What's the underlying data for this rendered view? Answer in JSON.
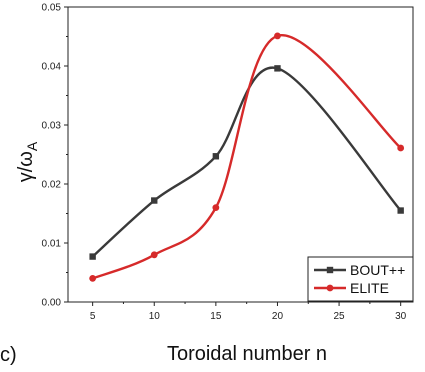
{
  "panel_label": "c)",
  "chart_data": {
    "type": "line",
    "title": "",
    "xlabel": "Toroidal number n",
    "ylabel_main": "γ/ω",
    "ylabel_sub": "A",
    "xlim": [
      3,
      31
    ],
    "ylim": [
      0,
      0.05
    ],
    "xticks": [
      5,
      10,
      15,
      20,
      25,
      30
    ],
    "yticks": [
      0.0,
      0.01,
      0.02,
      0.03,
      0.04,
      0.05
    ],
    "ytick_labels": [
      "0.00",
      "0.01",
      "0.02",
      "0.03",
      "0.04",
      "0.05"
    ],
    "grid": false,
    "legend_position": "bottom-right",
    "series": [
      {
        "name": "BOUT++",
        "color": "#3a3a3a",
        "marker": "square",
        "x": [
          5,
          10,
          15,
          20,
          30
        ],
        "y": [
          0.0077,
          0.0172,
          0.0247,
          0.0396,
          0.0155
        ]
      },
      {
        "name": "ELITE",
        "color": "#d62a2a",
        "marker": "circle",
        "x": [
          5,
          10,
          15,
          20,
          30
        ],
        "y": [
          0.004,
          0.008,
          0.016,
          0.0451,
          0.0261
        ]
      }
    ]
  }
}
